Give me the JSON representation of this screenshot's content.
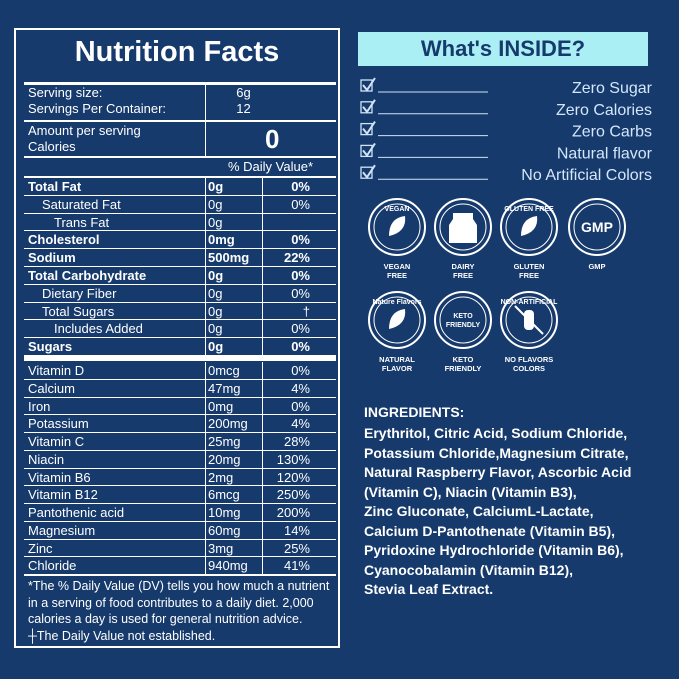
{
  "nutrition": {
    "title": "Nutrition Facts",
    "serving_size": {
      "label": "Serving size:",
      "value": "6g"
    },
    "servings": {
      "label": "Servings Per Container:",
      "value": "12"
    },
    "amount": {
      "label": "Amount per serving",
      "calories_label": "Calories",
      "value": "0"
    },
    "dv_header": "% Daily Value*",
    "rows": [
      [
        "Total Fat",
        "0g",
        "0%"
      ],
      [
        "Saturated Fat",
        "0g",
        "0%"
      ],
      [
        "Trans Fat",
        "0g"
      ],
      [
        "Cholesterol",
        "0mg",
        "0%"
      ],
      [
        "Sodium",
        "500mg",
        "22%"
      ],
      [
        "Total Carbohydrate",
        "0g",
        "0%"
      ],
      [
        "Dietary Fiber",
        "0g",
        "0%"
      ],
      [
        "Total Sugars",
        "0g",
        "†"
      ],
      [
        "Includes Added",
        "0g",
        "0%"
      ],
      [
        "Sugars",
        "0g",
        "0%"
      ]
    ],
    "vitamins": [
      [
        "Vitamin D",
        "0mcg",
        "0%"
      ],
      [
        "Calcium",
        "47mg",
        "4%"
      ],
      [
        "Iron",
        "0mg",
        "0%"
      ],
      [
        "Potassium",
        "200mg",
        "4%"
      ],
      [
        "Vitamin C",
        "25mg",
        "28%"
      ],
      [
        "Niacin",
        "20mg",
        "130%"
      ],
      [
        "Vitamin B6",
        "2mg",
        "120%"
      ],
      [
        "Vitamin B12",
        "6mcg",
        "250%"
      ],
      [
        "Pantothenic acid",
        "10mg",
        "200%"
      ],
      [
        "Magnesium",
        "60mg",
        "14%"
      ],
      [
        "Zinc",
        "3mg",
        "25%"
      ],
      [
        "Chloride",
        "940mg",
        "41%"
      ]
    ],
    "footnote": [
      "*The % Daily Value (DV) tells you how much a nutrient",
      "in a serving of food contributes to a daily diet. 2,000",
      "calories a day is used for general nutrition advice.",
      "┼The Daily Value not established."
    ]
  },
  "inside": {
    "title": "What's INSIDE?",
    "items": [
      "Zero Sugar",
      "Zero Calories",
      "Zero Carbs",
      "Natural flavor",
      "No Artificial Colors"
    ]
  },
  "badges": [
    {
      "icon": [
        "VEGAN"
      ],
      "caption": [
        "VEGAN",
        "FREE"
      ]
    },
    {
      "caption": [
        "DAIRY",
        "FREE"
      ]
    },
    {
      "icon": [
        "GLUTEN FREE"
      ],
      "caption": [
        "GLUTEN",
        "FREE"
      ]
    },
    {
      "icon": [
        "GMP"
      ],
      "caption": [
        "GMP"
      ]
    },
    {
      "icon": [
        "Nature Flavors"
      ],
      "caption": [
        "NATURAL",
        "FLAVOR"
      ]
    },
    {
      "icon": [
        "KETO",
        "FRIENDLY"
      ],
      "caption": [
        "KETO",
        "FRIENDLY"
      ]
    },
    {
      "icon": [
        "NON-ARTIFICIAL"
      ],
      "caption": [
        "NO FLAVORS",
        "COLORS"
      ]
    }
  ],
  "ingredients": {
    "title": "INGREDIENTS:",
    "lines": [
      "Erythritol, Citric Acid, Sodium Chloride,",
      "Potassium Chloride,Magnesium Citrate,",
      "Natural Raspberry Flavor, Ascorbic Acid",
      "(Vitamin C), Niacin (Vitamin B3),",
      "Zinc Gluconate, CalciumL-Lactate,",
      "Calcium D-Pantothenate (Vitamin B5),",
      "Pyridoxine Hydrochloride (Vitamin B6),",
      "Cyanocobalamin (Vitamin B12),",
      "Stevia Leaf Extract."
    ]
  }
}
